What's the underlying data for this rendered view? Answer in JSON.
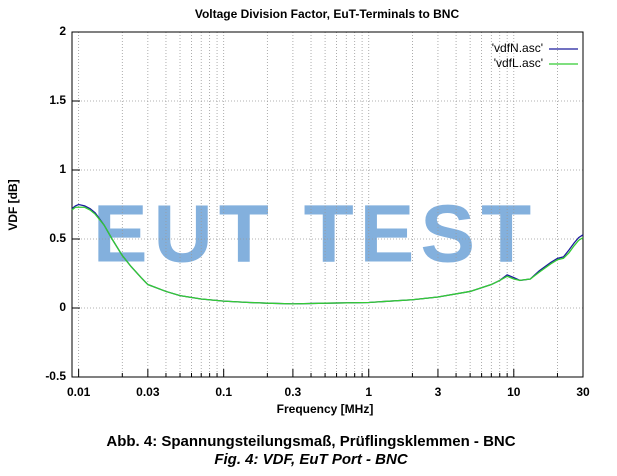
{
  "chart_data": {
    "type": "line",
    "title": "Voltage Division Factor, EuT-Terminals to BNC",
    "x_label": "Frequency [MHz]",
    "y_label": "VDF [dB]",
    "watermark": "EUT TEST",
    "captions": [
      "Abb. 4: Spannungsteilungsmaß, Prüflingsklemmen - BNC",
      "Fig. 4: VDF, EuT Port - BNC"
    ],
    "x_log": true,
    "grid": true,
    "legend": "top-right",
    "xlim": [
      0.009,
      30
    ],
    "ylim": [
      -0.5,
      2
    ],
    "xticks": [
      0.01,
      0.03,
      0.1,
      0.3,
      1,
      3,
      10,
      30
    ],
    "xminorticks": [
      0.02,
      0.04,
      0.05,
      0.06,
      0.07,
      0.08,
      0.09,
      0.2,
      0.4,
      0.5,
      0.6,
      0.7,
      0.8,
      0.9,
      2,
      4,
      5,
      6,
      7,
      8,
      9,
      20
    ],
    "yticks": [
      -0.5,
      0,
      0.5,
      1,
      1.5,
      2
    ],
    "x": [
      0.009,
      0.0095,
      0.01,
      0.011,
      0.012,
      0.013,
      0.015,
      0.017,
      0.02,
      0.023,
      0.027,
      0.03,
      0.04,
      0.05,
      0.07,
      0.1,
      0.15,
      0.2,
      0.3,
      0.5,
      1,
      2,
      3,
      5,
      7,
      8,
      9,
      10,
      11,
      13,
      15,
      18,
      20,
      22,
      24,
      26,
      28,
      30
    ],
    "series": [
      {
        "name": "'vdfN.asc'",
        "color": "#1c1c9c",
        "values": [
          0.72,
          0.74,
          0.75,
          0.74,
          0.72,
          0.69,
          0.6,
          0.5,
          0.38,
          0.3,
          0.22,
          0.17,
          0.12,
          0.09,
          0.065,
          0.05,
          0.04,
          0.035,
          0.03,
          0.035,
          0.04,
          0.06,
          0.08,
          0.12,
          0.17,
          0.2,
          0.24,
          0.22,
          0.2,
          0.21,
          0.27,
          0.33,
          0.36,
          0.37,
          0.42,
          0.47,
          0.51,
          0.53
        ]
      },
      {
        "name": "'vdfL.asc'",
        "color": "#33cc33",
        "values": [
          0.71,
          0.73,
          0.73,
          0.73,
          0.71,
          0.68,
          0.6,
          0.5,
          0.38,
          0.3,
          0.22,
          0.17,
          0.12,
          0.09,
          0.065,
          0.05,
          0.04,
          0.035,
          0.03,
          0.035,
          0.04,
          0.06,
          0.08,
          0.12,
          0.17,
          0.2,
          0.23,
          0.21,
          0.2,
          0.21,
          0.26,
          0.32,
          0.35,
          0.36,
          0.4,
          0.45,
          0.49,
          0.51
        ]
      }
    ]
  }
}
